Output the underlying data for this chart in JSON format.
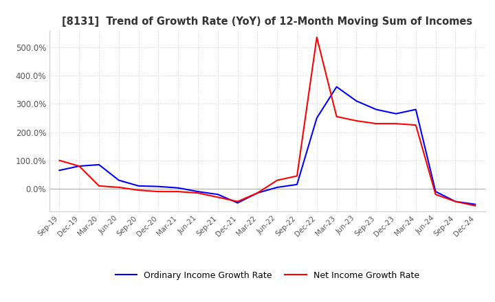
{
  "title": "[8131]  Trend of Growth Rate (YoY) of 12-Month Moving Sum of Incomes",
  "title_fontsize": 10.5,
  "background_color": "#ffffff",
  "plot_bg_color": "#ffffff",
  "grid_color": "#cccccc",
  "legend_labels": [
    "Ordinary Income Growth Rate",
    "Net Income Growth Rate"
  ],
  "legend_colors": [
    "#0000ff",
    "#ff0000"
  ],
  "x_labels": [
    "Sep-19",
    "Dec-19",
    "Mar-20",
    "Jun-20",
    "Sep-20",
    "Dec-20",
    "Mar-21",
    "Jun-21",
    "Sep-21",
    "Dec-21",
    "Mar-22",
    "Jun-22",
    "Sep-22",
    "Dec-22",
    "Mar-23",
    "Jun-23",
    "Sep-23",
    "Dec-23",
    "Mar-24",
    "Jun-24",
    "Sep-24",
    "Dec-24"
  ],
  "ordinary_income_growth": [
    65,
    80,
    85,
    30,
    10,
    8,
    3,
    -10,
    -20,
    -50,
    -15,
    5,
    15,
    250,
    360,
    310,
    280,
    265,
    280,
    -10,
    -45,
    -55
  ],
  "net_income_growth": [
    100,
    80,
    10,
    5,
    -5,
    -10,
    -10,
    -15,
    -30,
    -45,
    -15,
    30,
    45,
    535,
    255,
    240,
    230,
    230,
    225,
    -20,
    -45,
    -60
  ],
  "ylim": [
    -80,
    560
  ],
  "yticks": [
    0,
    100,
    200,
    300,
    400,
    500
  ],
  "line_width": 1.5
}
